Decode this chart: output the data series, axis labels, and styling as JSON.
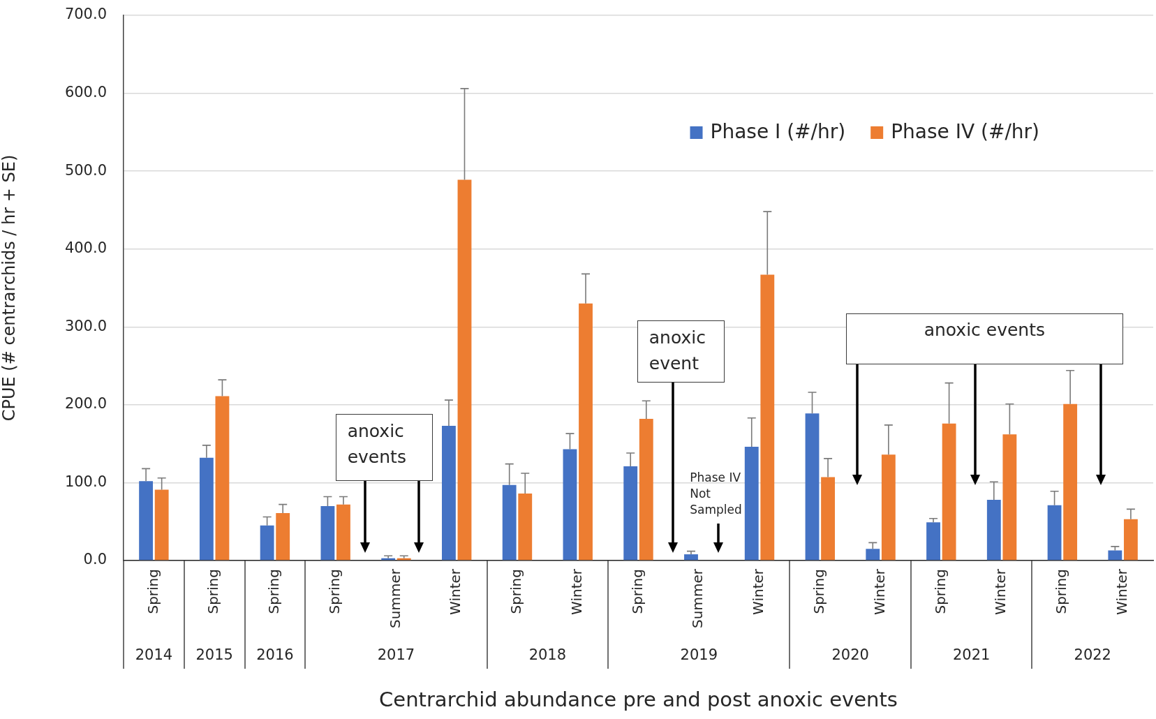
{
  "chart_data": {
    "type": "bar",
    "xlabel": "Centrarchid abundance pre and post anoxic events",
    "ylabel": "CPUE (# centrarchids / hr + SE)",
    "categories": [
      "Spring",
      "Spring",
      "Spring",
      "Spring",
      "Summer",
      "Winter",
      "Spring",
      "Winter",
      "Spring",
      "Summer",
      "Winter",
      "Spring",
      "Winter",
      "Spring",
      "Winter",
      "Spring",
      "Winter"
    ],
    "series": [
      {
        "name": "Phase I (#/hr)",
        "color": "#4472c4",
        "values": [
          102,
          132,
          45,
          70,
          3,
          173,
          97,
          143,
          121,
          8,
          146,
          189,
          15,
          49,
          78,
          71,
          13
        ],
        "errors": [
          [
            102,
            118
          ],
          [
            132,
            148
          ],
          [
            45,
            56
          ],
          [
            70,
            82
          ],
          [
            3,
            6
          ],
          [
            173,
            206
          ],
          [
            97,
            124
          ],
          [
            143,
            163
          ],
          [
            121,
            138
          ],
          [
            8,
            12
          ],
          [
            146,
            183
          ],
          [
            189,
            216
          ],
          [
            15,
            23
          ],
          [
            49,
            54
          ],
          [
            78,
            101
          ],
          [
            71,
            89
          ],
          [
            13,
            18
          ]
        ]
      },
      {
        "name": "Phase IV (#/hr)",
        "color": "#ed7d31",
        "values": [
          91,
          211,
          61,
          72,
          3,
          489,
          86,
          330,
          182,
          null,
          367,
          107,
          136,
          176,
          162,
          201,
          53
        ],
        "errors": [
          [
            91,
            106
          ],
          [
            211,
            232
          ],
          [
            61,
            72
          ],
          [
            72,
            82
          ],
          [
            3,
            6
          ],
          [
            489,
            606
          ],
          [
            86,
            112
          ],
          [
            330,
            368
          ],
          [
            182,
            205
          ],
          null,
          [
            367,
            448
          ],
          [
            107,
            131
          ],
          [
            136,
            174
          ],
          [
            176,
            228
          ],
          [
            162,
            201
          ],
          [
            201,
            244
          ],
          [
            53,
            66
          ]
        ]
      }
    ],
    "ylim": [
      0,
      700
    ],
    "yticks": [
      {
        "value": 0,
        "label": "0.0"
      },
      {
        "value": 100,
        "label": "100.0"
      },
      {
        "value": 200,
        "label": "200.0"
      },
      {
        "value": 300,
        "label": "300.0"
      },
      {
        "value": 400,
        "label": "400.0"
      },
      {
        "value": 500,
        "label": "500.0"
      },
      {
        "value": 600,
        "label": "600.0"
      },
      {
        "value": 700,
        "label": "700.0"
      }
    ],
    "grid": "y",
    "legend": "top right",
    "annotations": [
      "anoxic events",
      "anoxic event",
      "Phase IV Not Sampled",
      "anoxic events",
      "2014",
      "2015",
      "2016",
      "2017",
      "2018",
      "2019",
      "2020",
      "2021",
      "2022"
    ]
  }
}
